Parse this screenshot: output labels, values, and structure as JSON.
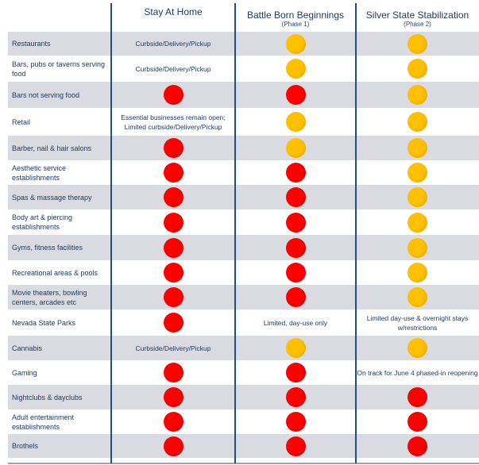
{
  "columns": [
    {
      "title": "Stay At Home",
      "subtitle": ""
    },
    {
      "title": "Battle Born Beginnings",
      "subtitle": "(Phase 1)"
    },
    {
      "title": "Silver State Stabilization",
      "subtitle": "(Phase 2)"
    }
  ],
  "colors": {
    "red": "#ff0000",
    "yellow": "#ffc000",
    "line": "#1f4e86",
    "text": "#1f3b63"
  },
  "rows": [
    {
      "label": "Restaurants",
      "c1": {
        "type": "text",
        "text": "Curbside/Delivery/Pickup"
      },
      "c2": {
        "type": "dot",
        "color": "yellow"
      },
      "c3": {
        "type": "dot",
        "color": "yellow"
      }
    },
    {
      "label": "Bars, pubs or taverns serving food",
      "c1": {
        "type": "text",
        "text": "Curbside/Delivery/Pickup"
      },
      "c2": {
        "type": "dot",
        "color": "yellow"
      },
      "c3": {
        "type": "dot",
        "color": "yellow"
      }
    },
    {
      "label": "Bars not serving food",
      "c1": {
        "type": "dot",
        "color": "red"
      },
      "c2": {
        "type": "dot",
        "color": "red"
      },
      "c3": {
        "type": "dot",
        "color": "yellow"
      }
    },
    {
      "label": "Retail",
      "c1": {
        "type": "text",
        "text": "Essential businesses remain open; Limited curbside/Delivery/Pickup"
      },
      "c2": {
        "type": "dot",
        "color": "yellow"
      },
      "c3": {
        "type": "dot",
        "color": "yellow"
      }
    },
    {
      "label": "Barber, nail & hair salons",
      "c1": {
        "type": "dot",
        "color": "red"
      },
      "c2": {
        "type": "dot",
        "color": "yellow"
      },
      "c3": {
        "type": "dot",
        "color": "yellow"
      }
    },
    {
      "label": "Aesthetic service establishments",
      "c1": {
        "type": "dot",
        "color": "red"
      },
      "c2": {
        "type": "dot",
        "color": "red"
      },
      "c3": {
        "type": "dot",
        "color": "yellow"
      }
    },
    {
      "label": "Spas & massage therapy",
      "c1": {
        "type": "dot",
        "color": "red"
      },
      "c2": {
        "type": "dot",
        "color": "red"
      },
      "c3": {
        "type": "dot",
        "color": "yellow"
      }
    },
    {
      "label": "Body art & piercing establishments",
      "c1": {
        "type": "dot",
        "color": "red"
      },
      "c2": {
        "type": "dot",
        "color": "red"
      },
      "c3": {
        "type": "dot",
        "color": "yellow"
      }
    },
    {
      "label": "Gyms, fitness facilities",
      "c1": {
        "type": "dot",
        "color": "red"
      },
      "c2": {
        "type": "dot",
        "color": "red"
      },
      "c3": {
        "type": "dot",
        "color": "yellow"
      }
    },
    {
      "label": "Recreational areas & pools",
      "c1": {
        "type": "dot",
        "color": "red"
      },
      "c2": {
        "type": "dot",
        "color": "red"
      },
      "c3": {
        "type": "dot",
        "color": "yellow"
      }
    },
    {
      "label": "Movie theaters, bowling centers, arcades etc",
      "c1": {
        "type": "dot",
        "color": "red"
      },
      "c2": {
        "type": "dot",
        "color": "red"
      },
      "c3": {
        "type": "dot",
        "color": "yellow"
      }
    },
    {
      "label": "Nevada State Parks",
      "c1": {
        "type": "dot",
        "color": "red"
      },
      "c2": {
        "type": "text",
        "text": "Limited, day-use only"
      },
      "c3": {
        "type": "text",
        "text": "Limited day-use & overnight stays w/restrictions"
      }
    },
    {
      "label": "Cannabis",
      "c1": {
        "type": "text",
        "text": "Curbside/Delivery/Pickup"
      },
      "c2": {
        "type": "dot",
        "color": "yellow"
      },
      "c3": {
        "type": "dot",
        "color": "yellow"
      }
    },
    {
      "label": "Gaming",
      "c1": {
        "type": "dot",
        "color": "red"
      },
      "c2": {
        "type": "dot",
        "color": "red"
      },
      "c3": {
        "type": "text",
        "text": "On track for June 4 phased-in reopening"
      }
    },
    {
      "label": "Nightclubs & dayclubs",
      "c1": {
        "type": "dot",
        "color": "red"
      },
      "c2": {
        "type": "dot",
        "color": "red"
      },
      "c3": {
        "type": "dot",
        "color": "red"
      }
    },
    {
      "label": "Adult entertainment establishments",
      "c1": {
        "type": "dot",
        "color": "red"
      },
      "c2": {
        "type": "dot",
        "color": "red"
      },
      "c3": {
        "type": "dot",
        "color": "red"
      }
    },
    {
      "label": "Brothels",
      "c1": {
        "type": "dot",
        "color": "red"
      },
      "c2": {
        "type": "dot",
        "color": "red"
      },
      "c3": {
        "type": "dot",
        "color": "red"
      }
    }
  ]
}
